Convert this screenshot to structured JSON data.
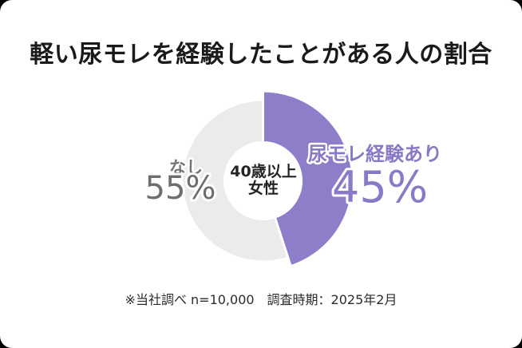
{
  "title": "軽い尿モレを経験したことがある人の割合",
  "chart_data": {
    "type": "pie",
    "donut": true,
    "start_angle": 0,
    "direction": "clockwise",
    "title": "軽い尿モレを経験したことがある人の割合",
    "segments": [
      {
        "name": "尿モレ経験あり",
        "value": 45,
        "display_value": "45%",
        "color": "#8e7dc9",
        "emphasized": true
      },
      {
        "name": "なし",
        "value": 55,
        "display_value": "55%",
        "color": "#ebebeb",
        "emphasized": false
      }
    ],
    "center_label": {
      "line1": "40歳以上",
      "line2": "女性"
    },
    "source_note": "※当社調べ n=10,000　調査時期：2025年2月"
  },
  "footer": {
    "note": "※当社調べ n=10,000　調査時期：2025年2月"
  },
  "colors": {
    "accent_purple": "#8e7dc9",
    "muted_slice_gray": "#ebebeb",
    "gray_label_text": "#6e6e6e",
    "purple_label_text": "#8a79c8",
    "title_text": "#1a1a1a",
    "footer_text": "#2b2b2b",
    "card_background": "#ffffff"
  }
}
